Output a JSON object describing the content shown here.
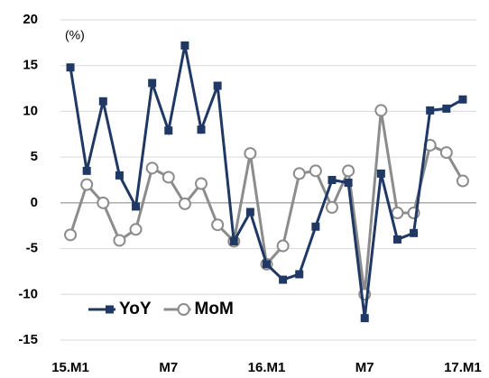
{
  "chart_data": {
    "type": "line",
    "annotation": "(%)",
    "categories": [
      "15.M1",
      null,
      null,
      null,
      null,
      null,
      "M7",
      null,
      null,
      null,
      null,
      null,
      "16.M1",
      null,
      null,
      null,
      null,
      null,
      "M7",
      null,
      null,
      null,
      null,
      null,
      "17.M1"
    ],
    "series": [
      {
        "name": "YoY",
        "color": "#1f3864",
        "marker": "square",
        "values": [
          14.8,
          3.5,
          11.1,
          3.0,
          -0.4,
          13.1,
          7.9,
          17.2,
          8.0,
          12.8,
          -4.2,
          -1.0,
          -6.7,
          -8.4,
          -7.8,
          -2.6,
          2.5,
          2.2,
          -12.6,
          3.2,
          -4.0,
          -3.3,
          10.1,
          10.3,
          11.3
        ]
      },
      {
        "name": "MoM",
        "color": "#8c8c8c",
        "marker": "circle",
        "values": [
          -3.5,
          2.0,
          0.0,
          -4.1,
          -2.9,
          3.8,
          2.8,
          -0.1,
          2.1,
          -2.4,
          -4.2,
          5.4,
          -6.7,
          -4.7,
          3.2,
          3.5,
          -0.5,
          3.5,
          -10.0,
          10.1,
          -1.1,
          -1.1,
          6.3,
          5.5,
          2.4
        ]
      }
    ],
    "ylim": [
      -15,
      20
    ],
    "yticks": [
      -15,
      -10,
      -5,
      0,
      5,
      10,
      15,
      20
    ],
    "grid": true,
    "legend": "lower left"
  }
}
